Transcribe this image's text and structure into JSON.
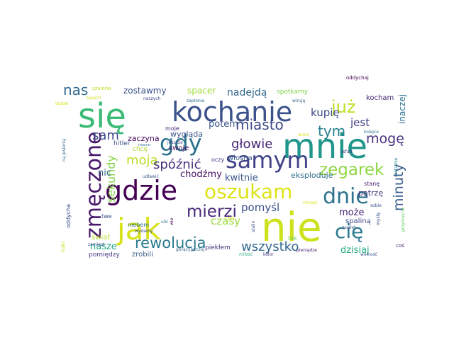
{
  "words": [
    {
      "text": "się",
      "color": "#3bbb75"
    },
    {
      "text": "mnie",
      "color": "#1f968b"
    },
    {
      "text": "nie",
      "color": "#cde11d"
    },
    {
      "text": "kochanie",
      "color": "#3b528b"
    },
    {
      "text": "gdzie",
      "color": "#440154"
    },
    {
      "text": "oszukam",
      "color": "#dde318"
    },
    {
      "text": "samym",
      "color": "#414487"
    },
    {
      "text": "gdy",
      "color": "#2c728e"
    },
    {
      "text": "jak",
      "color": "#d8e219"
    },
    {
      "text": "dnie",
      "color": "#2c728e"
    },
    {
      "text": "zmęczone",
      "color": "#48186a"
    },
    {
      "text": "zegarek",
      "color": "#8fd744"
    },
    {
      "text": "rewolucja",
      "color": "#2a788e"
    },
    {
      "text": "mierzi",
      "color": "#482878"
    },
    {
      "text": "cię",
      "color": "#2a788e"
    },
    {
      "text": "już",
      "color": "#bddf26"
    },
    {
      "text": "miasto",
      "color": "#3e4a89"
    },
    {
      "text": "wszystko",
      "color": "#31688e"
    },
    {
      "text": "nas",
      "color": "#31688e"
    },
    {
      "text": "moja",
      "color": "#b8de29"
    },
    {
      "text": "głowie",
      "color": "#482475"
    },
    {
      "text": "spóźnić",
      "color": "#46337e"
    },
    {
      "text": "minuty",
      "color": "#365c8d"
    },
    {
      "text": "tym",
      "color": "#27808e"
    },
    {
      "text": "sam",
      "color": "#3e4989"
    },
    {
      "text": "mogę",
      "color": "#46337e"
    },
    {
      "text": "jest",
      "color": "#404588"
    },
    {
      "text": "sekundy",
      "color": "#86d549"
    },
    {
      "text": "kupię",
      "color": "#3e4c8a"
    },
    {
      "text": "nadejdą",
      "color": "#31688e"
    },
    {
      "text": "pomyśl",
      "color": "#3b528b"
    },
    {
      "text": "może",
      "color": "#482475"
    },
    {
      "text": "czasy",
      "color": "#9bd93c"
    },
    {
      "text": "nasze",
      "color": "#21a685"
    },
    {
      "text": "chodźmy",
      "color": "#471164"
    },
    {
      "text": "potem",
      "color": "#3a548c"
    },
    {
      "text": "kwitnie",
      "color": "#39568c"
    },
    {
      "text": "dzisiaj",
      "color": "#25ac82"
    },
    {
      "text": "zostawmy",
      "color": "#3b528b"
    },
    {
      "text": "spacer",
      "color": "#a2da37"
    },
    {
      "text": "nic",
      "color": "#33638d"
    },
    {
      "text": "inaczej",
      "color": "#2e6f8e"
    },
    {
      "text": "eksploduje",
      "color": "#2f6c8e"
    },
    {
      "text": "wygląda",
      "color": "#3b528b"
    },
    {
      "text": "zaczyna",
      "color": "#46085c"
    },
    {
      "text": "kocham",
      "color": "#482878"
    },
    {
      "text": "swoje",
      "color": "#471365"
    },
    {
      "text": "spotkamy",
      "color": "#84d44b"
    },
    {
      "text": "wiosna",
      "color": "#375a8c"
    },
    {
      "text": "patrzę",
      "color": "#453781"
    },
    {
      "text": "spaliną",
      "color": "#3e4989"
    },
    {
      "text": "świat",
      "color": "#b5de2b"
    },
    {
      "text": "pomiędzy",
      "color": "#443983"
    },
    {
      "text": "zrobili",
      "color": "#375b8d"
    },
    {
      "text": "piekłem",
      "color": "#46327e"
    },
    {
      "text": "oddycha",
      "color": "#3c4f8a"
    },
    {
      "text": "moje",
      "color": "#482979"
    },
    {
      "text": "hitler",
      "color": "#3b518b"
    },
    {
      "text": "chcę",
      "color": "#b0dd2f"
    },
    {
      "text": "stanę",
      "color": "#481d6f"
    },
    {
      "text": "tak",
      "color": "#73d056"
    },
    {
      "text": "twe",
      "color": "#3b528b"
    },
    {
      "text": "niebem",
      "color": "#2e6e8e"
    },
    {
      "text": "oczy",
      "color": "#46337e"
    },
    {
      "text": "oddychaj",
      "color": "#440154"
    },
    {
      "text": "szalona",
      "color": "#c2df23"
    },
    {
      "text": "zapach",
      "color": "#d8e219"
    },
    {
      "text": "naszych",
      "color": "#3f4889"
    },
    {
      "text": "zapłonie",
      "color": "#2d718e"
    },
    {
      "text": "wirują",
      "color": "#33638d"
    },
    {
      "text": "jeszcze",
      "color": "#404688"
    },
    {
      "text": "wiem",
      "color": "#d8e219"
    },
    {
      "text": "kolejce",
      "color": "#2c738e"
    },
    {
      "text": "asfalt",
      "color": "#453882"
    },
    {
      "text": "sobie",
      "color": "#39568c"
    },
    {
      "text": "ostatnie",
      "color": "#26828e"
    },
    {
      "text": "zasiłek",
      "color": "#3b528b"
    },
    {
      "text": "przynieście",
      "color": "#5ec962"
    },
    {
      "text": "wydamy",
      "color": "#3b528b"
    },
    {
      "text": "zamiast",
      "color": "#3b528b"
    },
    {
      "text": "ulic",
      "color": "#2c728e"
    },
    {
      "text": "wie",
      "color": "#440154"
    },
    {
      "text": "twój",
      "color": "#cde11d"
    },
    {
      "text": "stalin",
      "color": "#3b528b"
    },
    {
      "text": "gorącypoczuj",
      "color": "#33638d"
    },
    {
      "text": "miłość",
      "color": "#2ab07f"
    },
    {
      "text": "kolor",
      "color": "#453781"
    },
    {
      "text": "pieniądze",
      "color": "#48186a"
    },
    {
      "text": "wolność",
      "color": "#3b528b"
    },
    {
      "text": "łóżko",
      "color": "#cde11d"
    },
    {
      "text": "butów",
      "color": "#d8e219"
    },
    {
      "text": "ną jesienią",
      "color": "#31688e"
    },
    {
      "text": "mocno",
      "color": "#2c728e"
    },
    {
      "text": "udławić",
      "color": "#3b528b"
    },
    {
      "text": "chcesz",
      "color": "#dde318"
    },
    {
      "text": "myślę",
      "color": "#3b528b"
    },
    {
      "text": "coś",
      "color": "#481d6f"
    }
  ]
}
